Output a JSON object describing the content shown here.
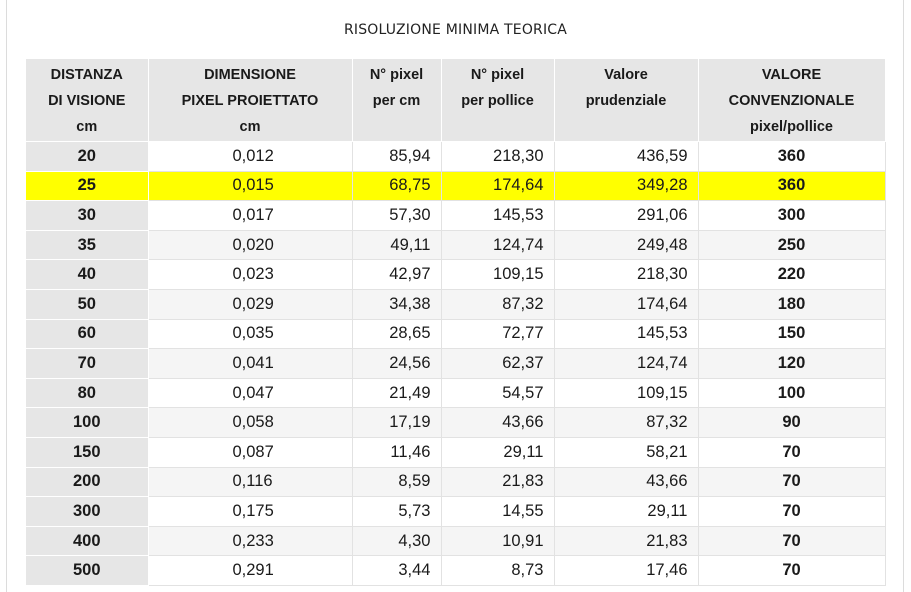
{
  "title": "RISOLUZIONE MINIMA TEORICA",
  "headers": [
    [
      "DISTANZA",
      "DI VISIONE",
      "cm"
    ],
    [
      "DIMENSIONE",
      "PIXEL PROIETTATO",
      "cm"
    ],
    [
      "N° pixel",
      "per cm",
      ""
    ],
    [
      "N° pixel",
      "per pollice",
      ""
    ],
    [
      "Valore",
      "prudenziale",
      ""
    ],
    [
      "VALORE",
      "CONVENZIONALE",
      "pixel/pollice"
    ]
  ],
  "highlight_color": "#ffff00",
  "rows": [
    [
      "20",
      "0,012",
      "85,94",
      "218,30",
      "436,59",
      "360"
    ],
    [
      "25",
      "0,015",
      "68,75",
      "174,64",
      "349,28",
      "360"
    ],
    [
      "30",
      "0,017",
      "57,30",
      "145,53",
      "291,06",
      "300"
    ],
    [
      "35",
      "0,020",
      "49,11",
      "124,74",
      "249,48",
      "250"
    ],
    [
      "40",
      "0,023",
      "42,97",
      "109,15",
      "218,30",
      "220"
    ],
    [
      "50",
      "0,029",
      "34,38",
      "87,32",
      "174,64",
      "180"
    ],
    [
      "60",
      "0,035",
      "28,65",
      "72,77",
      "145,53",
      "150"
    ],
    [
      "70",
      "0,041",
      "24,56",
      "62,37",
      "124,74",
      "120"
    ],
    [
      "80",
      "0,047",
      "21,49",
      "54,57",
      "109,15",
      "100"
    ],
    [
      "100",
      "0,058",
      "17,19",
      "43,66",
      "87,32",
      "90"
    ],
    [
      "150",
      "0,087",
      "11,46",
      "29,11",
      "58,21",
      "70"
    ],
    [
      "200",
      "0,116",
      "8,59",
      "21,83",
      "43,66",
      "70"
    ],
    [
      "300",
      "0,175",
      "5,73",
      "14,55",
      "29,11",
      "70"
    ],
    [
      "400",
      "0,233",
      "4,30",
      "10,91",
      "21,83",
      "70"
    ],
    [
      "500",
      "0,291",
      "3,44",
      "8,73",
      "17,46",
      "70"
    ]
  ],
  "highlighted_row": 1
}
